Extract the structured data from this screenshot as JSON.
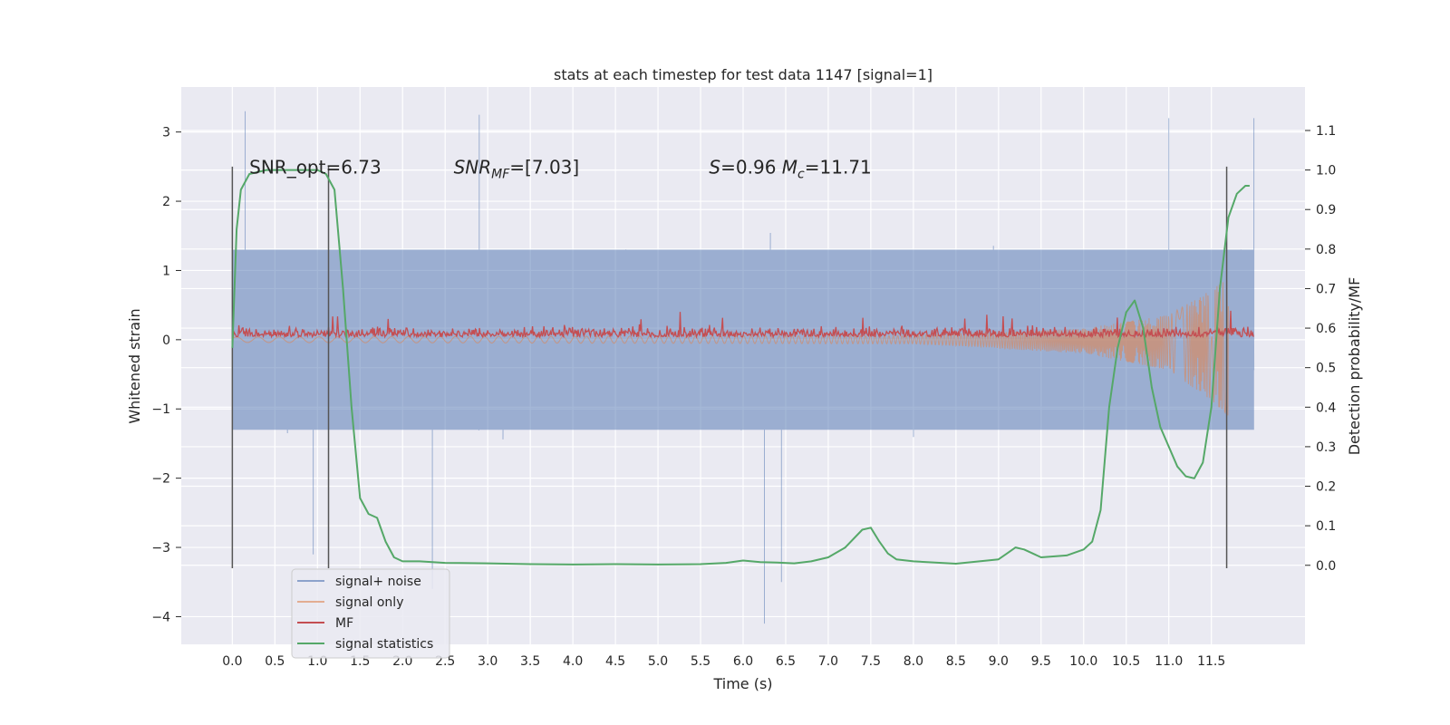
{
  "chart_data": {
    "type": "line",
    "title": "stats at each timestep for test data 1147 [signal=1]",
    "xlabel": "Time (s)",
    "ylabel": "Whitened strain",
    "y2label": "Detection probability/MF",
    "xlim": [
      -0.6,
      12.6
    ],
    "ylim": [
      -4.4,
      3.65
    ],
    "y2lim": [
      -0.2,
      1.21
    ],
    "x_ticks": [
      0.0,
      0.5,
      1.0,
      1.5,
      2.0,
      2.5,
      3.0,
      3.5,
      4.0,
      4.5,
      5.0,
      5.5,
      6.0,
      6.5,
      7.0,
      7.5,
      8.0,
      8.5,
      9.0,
      9.5,
      10.0,
      10.5,
      11.0,
      11.5
    ],
    "x_tick_labels": [
      "0.0",
      "0.5",
      "1.0",
      "1.5",
      "2.0",
      "2.5",
      "3.0",
      "3.5",
      "4.0",
      "4.5",
      "5.0",
      "5.5",
      "6.0",
      "6.5",
      "7.0",
      "7.5",
      "8.0",
      "8.5",
      "9.0",
      "9.5",
      "10.0",
      "10.5",
      "11.0",
      "11.5"
    ],
    "y_ticks": [
      -4,
      -3,
      -2,
      -1,
      0,
      1,
      2,
      3
    ],
    "y_tick_labels": [
      "−4",
      "−3",
      "−2",
      "−1",
      "0",
      "1",
      "2",
      "3"
    ],
    "y2_ticks": [
      0.0,
      0.1,
      0.2,
      0.3,
      0.4,
      0.5,
      0.6,
      0.7,
      0.8,
      0.9,
      1.0,
      1.1
    ],
    "y2_tick_labels": [
      "0.0",
      "0.1",
      "0.2",
      "0.3",
      "0.4",
      "0.5",
      "0.6",
      "0.7",
      "0.8",
      "0.9",
      "1.0",
      "1.1"
    ],
    "grid": true,
    "legend_position": "lower-left",
    "annotations": [
      {
        "text": "SNR_opt=6.73",
        "x": 0.2,
        "y": 2.45
      },
      {
        "text": "SNR_MF=[7.03]",
        "x": 2.6,
        "y": 2.45
      },
      {
        "text": "S=0.96   M_c=11.71",
        "x": 5.6,
        "y": 2.45
      }
    ],
    "vertical_markers": [
      {
        "x": 0.0,
        "y_from": -3.3,
        "y_to": 2.5
      },
      {
        "x": 1.13,
        "y_from": -3.3,
        "y_to": 2.5
      },
      {
        "x": 11.68,
        "y_from": -3.3,
        "y_to": 2.5
      }
    ],
    "series": [
      {
        "name": "signal+ noise",
        "color": "#4c72b0",
        "axis": "left",
        "style": "dense-noise",
        "x_range": [
          0.0,
          12.0
        ],
        "sigma": 0.75,
        "extremes": [
          {
            "x": 0.15,
            "y": 3.3
          },
          {
            "x": 2.9,
            "y": 3.25
          },
          {
            "x": 11.0,
            "y": 3.2
          },
          {
            "x": 12.0,
            "y": 3.2
          },
          {
            "x": 2.35,
            "y": -3.6
          },
          {
            "x": 6.25,
            "y": -4.1
          },
          {
            "x": 6.45,
            "y": -3.5
          },
          {
            "x": 0.95,
            "y": -3.1
          }
        ]
      },
      {
        "name": "signal only",
        "color": "#dd8452",
        "axis": "left",
        "style": "chirp",
        "x_range": [
          0.0,
          11.7
        ],
        "envelope": [
          [
            0.0,
            0.04
          ],
          [
            8.0,
            0.06
          ],
          [
            10.0,
            0.18
          ],
          [
            11.0,
            0.4
          ],
          [
            11.5,
            0.8
          ],
          [
            11.7,
            1.0
          ]
        ]
      },
      {
        "name": "MF",
        "color": "#c44e52",
        "axis": "left",
        "style": "noise-band",
        "x_range": [
          0.0,
          12.0
        ],
        "baseline": 0.13,
        "spread": 0.2
      },
      {
        "name": "signal statistics",
        "color": "#55a868",
        "axis": "right",
        "style": "line",
        "x": [
          0.0,
          0.05,
          0.1,
          0.2,
          0.4,
          0.8,
          1.0,
          1.1,
          1.2,
          1.3,
          1.4,
          1.5,
          1.6,
          1.7,
          1.8,
          1.9,
          2.0,
          2.2,
          2.5,
          3.0,
          3.5,
          4.0,
          4.5,
          5.0,
          5.5,
          5.8,
          6.0,
          6.2,
          6.4,
          6.6,
          6.8,
          7.0,
          7.2,
          7.4,
          7.5,
          7.6,
          7.7,
          7.8,
          8.0,
          8.5,
          9.0,
          9.1,
          9.2,
          9.3,
          9.5,
          9.8,
          10.0,
          10.1,
          10.2,
          10.3,
          10.4,
          10.5,
          10.6,
          10.7,
          10.8,
          10.9,
          11.0,
          11.1,
          11.2,
          11.3,
          11.4,
          11.5,
          11.6,
          11.7,
          11.8,
          11.9,
          11.95
        ],
        "y": [
          0.55,
          0.85,
          0.95,
          0.99,
          1.0,
          1.0,
          1.0,
          0.99,
          0.95,
          0.7,
          0.4,
          0.17,
          0.13,
          0.12,
          0.06,
          0.02,
          0.01,
          0.01,
          0.006,
          0.005,
          0.003,
          0.002,
          0.003,
          0.002,
          0.003,
          0.006,
          0.012,
          0.008,
          0.007,
          0.005,
          0.01,
          0.02,
          0.045,
          0.09,
          0.095,
          0.06,
          0.03,
          0.015,
          0.01,
          0.004,
          0.015,
          0.03,
          0.045,
          0.04,
          0.02,
          0.025,
          0.04,
          0.06,
          0.14,
          0.4,
          0.55,
          0.64,
          0.67,
          0.6,
          0.45,
          0.35,
          0.3,
          0.25,
          0.225,
          0.22,
          0.26,
          0.4,
          0.7,
          0.88,
          0.94,
          0.96,
          0.96
        ]
      }
    ]
  }
}
